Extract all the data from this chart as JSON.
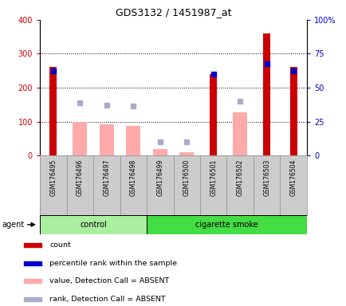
{
  "title": "GDS3132 / 1451987_at",
  "samples": [
    "GSM176495",
    "GSM176496",
    "GSM176497",
    "GSM176498",
    "GSM176499",
    "GSM176500",
    "GSM176501",
    "GSM176502",
    "GSM176503",
    "GSM176504"
  ],
  "count_values": [
    260,
    0,
    0,
    0,
    0,
    0,
    240,
    0,
    360,
    260
  ],
  "percentile_rank": [
    250,
    null,
    null,
    null,
    null,
    null,
    240,
    null,
    270,
    250
  ],
  "absent_value": [
    null,
    100,
    92,
    88,
    18,
    10,
    null,
    128,
    null,
    null
  ],
  "absent_rank": [
    null,
    155,
    148,
    147,
    40,
    40,
    null,
    160,
    null,
    null
  ],
  "color_count": "#cc0000",
  "color_percentile": "#0000cc",
  "color_absent_value": "#ffaaaa",
  "color_absent_rank": "#aaaacc",
  "color_control_bg": "#aaeea0",
  "color_smoke_bg": "#44dd44",
  "legend_items": [
    {
      "color": "#cc0000",
      "label": "count"
    },
    {
      "color": "#0000cc",
      "label": "percentile rank within the sample"
    },
    {
      "color": "#ffaaaa",
      "label": "value, Detection Call = ABSENT"
    },
    {
      "color": "#aaaacc",
      "label": "rank, Detection Call = ABSENT"
    }
  ]
}
